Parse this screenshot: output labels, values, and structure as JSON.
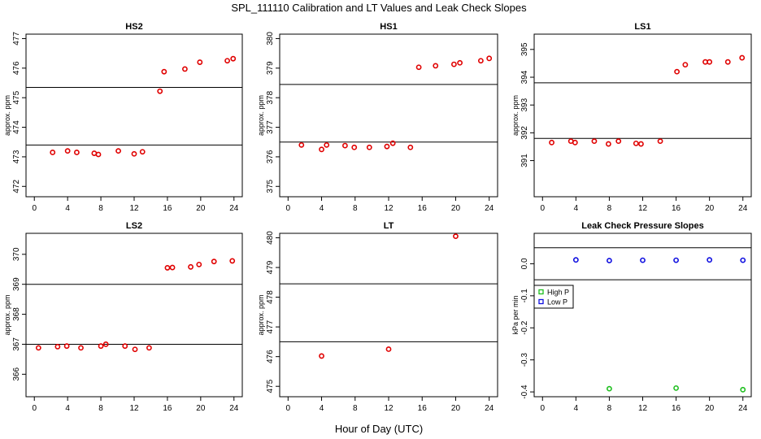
{
  "figure": {
    "title": "SPL_111110  Calibration and LT Values and Leak Check Slopes",
    "xlabel": "Hour of Day (UTC)"
  },
  "chart_data": [
    {
      "id": "hs2",
      "type": "scatter",
      "title": "HS2",
      "ylabel": "approx. ppm",
      "xlim": [
        -1,
        25
      ],
      "ylim": [
        471.65,
        477.15
      ],
      "xticks": [
        0,
        4,
        8,
        12,
        16,
        20,
        24
      ],
      "yticks": [
        472,
        473,
        474,
        475,
        476,
        477
      ],
      "hlines": [
        473.4,
        475.35
      ],
      "series": [
        {
          "name": "values",
          "color": "#e00000",
          "x": [
            2.2,
            4.0,
            5.1,
            7.2,
            7.7,
            10.1,
            12.0,
            13.0,
            15.1,
            15.6,
            18.1,
            19.9,
            23.2,
            23.9
          ],
          "y": [
            473.15,
            473.2,
            473.15,
            473.12,
            473.08,
            473.2,
            473.1,
            473.17,
            475.22,
            475.88,
            475.97,
            476.2,
            476.25,
            476.32
          ]
        }
      ]
    },
    {
      "id": "hs1",
      "type": "scatter",
      "title": "HS1",
      "ylabel": "approx. ppm",
      "xlim": [
        -1,
        25
      ],
      "ylim": [
        374.65,
        380.15
      ],
      "xticks": [
        0,
        4,
        8,
        12,
        16,
        20,
        24
      ],
      "yticks": [
        375,
        376,
        377,
        378,
        379,
        380
      ],
      "hlines": [
        376.5,
        378.45
      ],
      "series": [
        {
          "name": "values",
          "color": "#e00000",
          "x": [
            1.6,
            4.0,
            4.6,
            6.8,
            7.9,
            9.7,
            11.8,
            12.5,
            14.6,
            15.6,
            17.6,
            19.8,
            20.5,
            23.0,
            24.0
          ],
          "y": [
            376.4,
            376.25,
            376.4,
            376.38,
            376.32,
            376.32,
            376.35,
            376.46,
            376.32,
            379.03,
            379.08,
            379.13,
            379.18,
            379.25,
            379.33
          ]
        }
      ]
    },
    {
      "id": "ls1",
      "type": "scatter",
      "title": "LS1",
      "ylabel": "approx. ppm",
      "xlim": [
        -1,
        25
      ],
      "ylim": [
        389.7,
        395.55
      ],
      "xticks": [
        0,
        4,
        8,
        12,
        16,
        20,
        24
      ],
      "yticks": [
        391,
        392,
        393,
        394,
        395
      ],
      "hlines": [
        391.8,
        393.8
      ],
      "series": [
        {
          "name": "values",
          "color": "#e00000",
          "x": [
            1.1,
            3.4,
            3.9,
            6.2,
            7.9,
            9.1,
            11.2,
            11.8,
            14.1,
            16.1,
            17.1,
            19.5,
            20.0,
            22.2,
            23.9
          ],
          "y": [
            391.65,
            391.7,
            391.65,
            391.7,
            391.6,
            391.7,
            391.62,
            391.6,
            391.7,
            394.2,
            394.45,
            394.55,
            394.55,
            394.55,
            394.7
          ]
        }
      ]
    },
    {
      "id": "ls2",
      "type": "scatter",
      "title": "LS2",
      "ylabel": "approx. ppm",
      "xlim": [
        -1,
        25
      ],
      "ylim": [
        365.25,
        370.7
      ],
      "xticks": [
        0,
        4,
        8,
        12,
        16,
        20,
        24
      ],
      "yticks": [
        366,
        367,
        368,
        369,
        370
      ],
      "hlines": [
        367.0,
        369.0
      ],
      "series": [
        {
          "name": "values",
          "color": "#e00000",
          "x": [
            0.5,
            2.8,
            3.9,
            5.6,
            8.0,
            8.6,
            10.9,
            12.1,
            13.8,
            16.0,
            16.6,
            18.8,
            19.8,
            21.6,
            23.8
          ],
          "y": [
            366.88,
            366.92,
            366.94,
            366.88,
            366.94,
            367.0,
            366.94,
            366.83,
            366.88,
            369.55,
            369.56,
            369.58,
            369.66,
            369.76,
            369.78
          ]
        }
      ]
    },
    {
      "id": "lt",
      "type": "scatter",
      "title": "LT",
      "ylabel": "approx. ppm",
      "xlim": [
        -1,
        25
      ],
      "ylim": [
        474.65,
        480.15
      ],
      "xticks": [
        0,
        4,
        8,
        12,
        16,
        20,
        24
      ],
      "yticks": [
        475,
        476,
        477,
        478,
        479,
        480
      ],
      "hlines": [
        476.5,
        478.45
      ],
      "series": [
        {
          "name": "values",
          "color": "#e00000",
          "x": [
            4.0,
            12.0,
            20.0
          ],
          "y": [
            476.02,
            476.25,
            480.05
          ]
        }
      ]
    },
    {
      "id": "lc",
      "type": "scatter",
      "title": "Leak Check Pressure Slopes",
      "ylabel": "kPa per min",
      "xlim": [
        -1,
        25
      ],
      "ylim": [
        -0.415,
        0.095
      ],
      "xticks": [
        0,
        4,
        8,
        12,
        16,
        20,
        24
      ],
      "yticks": [
        -0.4,
        -0.3,
        -0.2,
        -0.1,
        0.0
      ],
      "ytick_labels": [
        "-0.4",
        "-0.3",
        "-0.2",
        "-0.1",
        "0.0"
      ],
      "hlines": [
        0.05,
        -0.05
      ],
      "legend": {
        "position": "left",
        "entries": [
          {
            "label": "High P",
            "color": "#1fbf1f"
          },
          {
            "label": "Low P",
            "color": "#1010e0"
          }
        ]
      },
      "series": [
        {
          "name": "High P",
          "color": "#1fbf1f",
          "x": [
            8,
            16,
            24
          ],
          "y": [
            -0.39,
            -0.388,
            -0.393
          ]
        },
        {
          "name": "Low P",
          "color": "#1010e0",
          "x": [
            4,
            8,
            12,
            16,
            20,
            24
          ],
          "y": [
            0.012,
            0.01,
            0.011,
            0.011,
            0.012,
            0.011
          ]
        }
      ]
    }
  ]
}
